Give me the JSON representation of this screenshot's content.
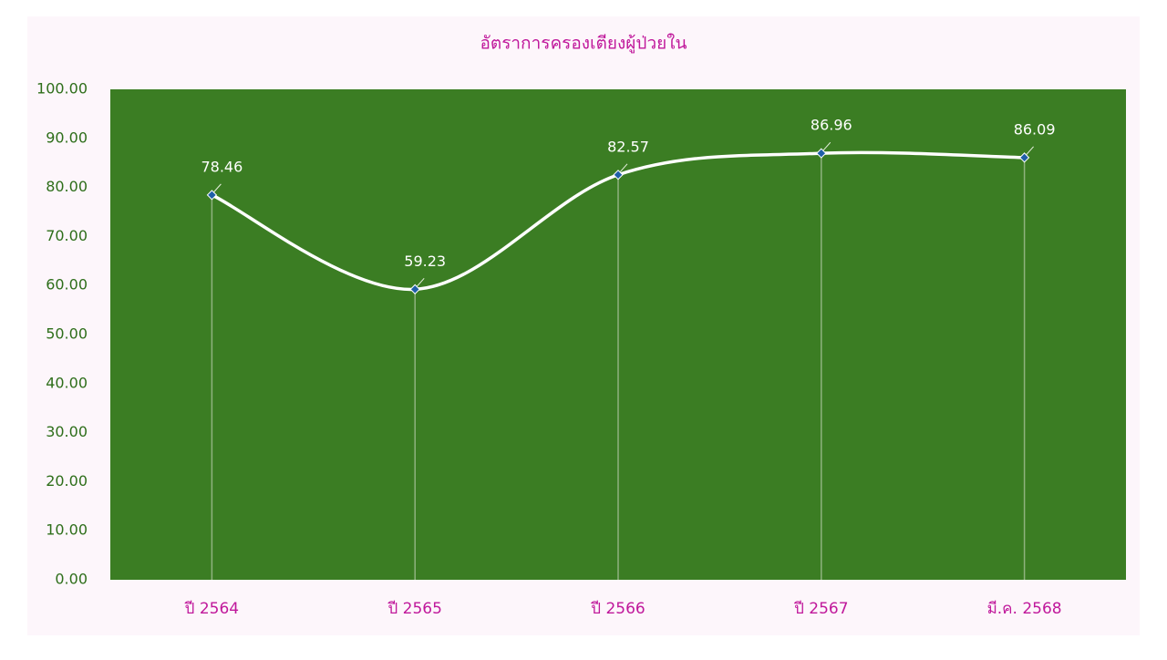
{
  "chart_data": {
    "type": "line",
    "title": "อัตราการครองเตียงผู้ป่วยใน",
    "categories": [
      "ปี 2564",
      "ปี 2565",
      "ปี 2566",
      "ปี 2567",
      "มี.ค. 2568"
    ],
    "values": [
      78.46,
      59.23,
      82.57,
      86.96,
      86.09
    ],
    "color": "#ffffff",
    "marker_color": "#1f5fa8",
    "plot_background": "#3b7d23",
    "smooth": true,
    "drop_lines": true,
    "ylim": [
      0,
      100
    ],
    "yticks": [
      {
        "value": 0,
        "label": "0.00"
      },
      {
        "value": 10,
        "label": "10.00"
      },
      {
        "value": 20,
        "label": "20.00"
      },
      {
        "value": 30,
        "label": "30.00"
      },
      {
        "value": 40,
        "label": "40.00"
      },
      {
        "value": 50,
        "label": "50.00"
      },
      {
        "value": 60,
        "label": "60.00"
      },
      {
        "value": 70,
        "label": "70.00"
      },
      {
        "value": 80,
        "label": "80.00"
      },
      {
        "value": 90,
        "label": "90.00"
      },
      {
        "value": 100,
        "label": "100.00"
      }
    ]
  }
}
